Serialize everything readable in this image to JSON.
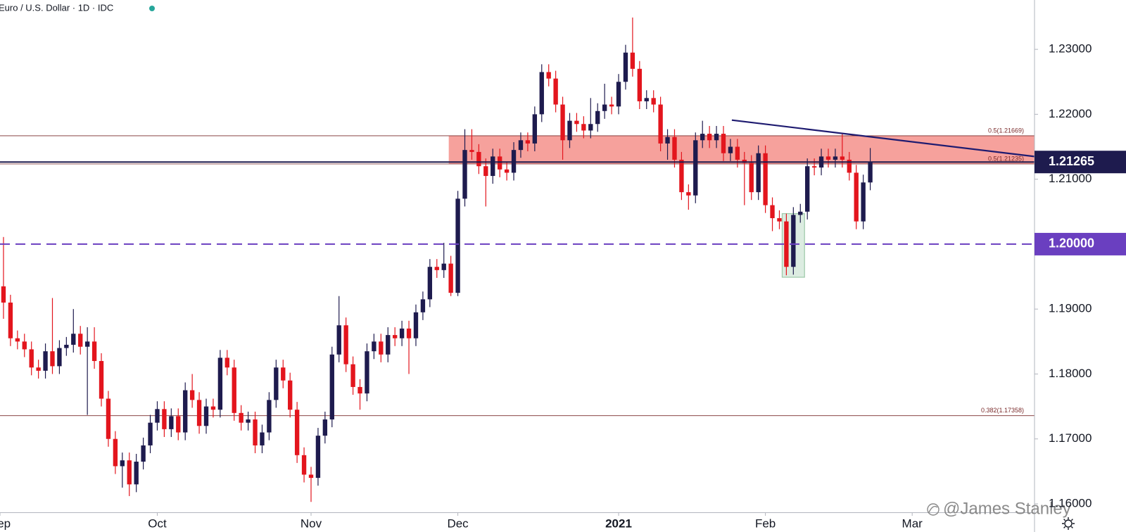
{
  "chart_data": {
    "type": "candlestick",
    "title": "Euro / U.S. Dollar · 1D · IDC",
    "watermark": "@James Stanley",
    "up_color": "#1e1b4e",
    "down_color": "#e3151d",
    "xlim": [
      -0.5,
      147.5
    ],
    "ylim": [
      1.1587,
      1.2376
    ],
    "xticks": [
      {
        "value": -0.5,
        "label": "Sep"
      },
      {
        "value": 22,
        "label": "Oct"
      },
      {
        "value": 44,
        "label": "Nov"
      },
      {
        "value": 65,
        "label": "Dec"
      },
      {
        "value": 88,
        "label": "2021"
      },
      {
        "value": 109,
        "label": "Feb"
      },
      {
        "value": 130,
        "label": "Mar"
      }
    ],
    "yticks": [
      {
        "value": 1.23,
        "label": "1.23000"
      },
      {
        "value": 1.22,
        "label": "1.22000"
      },
      {
        "value": 1.21,
        "label": "1.21000"
      },
      {
        "value": 1.2,
        "label": "1.20000"
      },
      {
        "value": 1.19,
        "label": "1.19000"
      },
      {
        "value": 1.18,
        "label": "1.18000"
      },
      {
        "value": 1.17,
        "label": "1.17000"
      },
      {
        "value": 1.16,
        "label": "1.16000"
      }
    ],
    "last_price": {
      "value": 1.21265,
      "label": "1.21265",
      "color": "#1e1b4e"
    },
    "level": {
      "value": 1.2,
      "label": "1.20000",
      "color": "#6a3fc0"
    },
    "fib_levels": [
      {
        "value": 1.21669,
        "label": "0.5(1.21669)"
      },
      {
        "value": 1.21235,
        "label": "0.5(1.21235)"
      },
      {
        "value": 1.17358,
        "label": "0.382(1.17358)"
      }
    ],
    "zone": {
      "x": 63.7,
      "y": [
        1.21235,
        1.21669
      ],
      "color": "#f4918b"
    },
    "trendline": {
      "x": [
        104.2,
        147.5
      ],
      "y": [
        1.2191,
        1.2135
      ],
      "color": "#1e1b70"
    },
    "highlight_box": {
      "x": [
        111.4,
        114.6
      ],
      "y": [
        1.1949,
        1.2047
      ],
      "color": "#9cc9a8"
    },
    "open": [
      1.1935,
      1.191,
      1.1855,
      1.185,
      1.1838,
      1.181,
      1.1805,
      1.1835,
      1.1812,
      1.184,
      1.1845,
      1.1862,
      1.1842,
      1.185,
      1.182,
      1.1762,
      1.17,
      1.1658,
      1.1667,
      1.163,
      1.1665,
      1.169,
      1.1725,
      1.1746,
      1.1715,
      1.1735,
      1.171,
      1.1775,
      1.176,
      1.172,
      1.175,
      1.1745,
      1.1825,
      1.181,
      1.174,
      1.1725,
      1.173,
      1.169,
      1.171,
      1.176,
      1.181,
      1.179,
      1.1745,
      1.1675,
      1.1645,
      1.164,
      1.1705,
      1.173,
      1.183,
      1.1875,
      1.1815,
      1.178,
      1.177,
      1.1835,
      1.185,
      1.183,
      1.186,
      1.1855,
      1.187,
      1.1855,
      1.1895,
      1.1915,
      1.1965,
      1.196,
      1.197,
      1.1925,
      1.207,
      1.2145,
      1.2142,
      1.212,
      1.2105,
      1.2135,
      1.2115,
      1.211,
      1.2145,
      1.216,
      1.2155,
      1.22,
      1.2265,
      1.2255,
      1.2215,
      1.216,
      1.219,
      1.2185,
      1.2175,
      1.2185,
      1.2205,
      1.2215,
      1.2212,
      1.225,
      1.2295,
      1.227,
      1.222,
      1.2225,
      1.2215,
      1.2155,
      1.2165,
      1.213,
      1.208,
      1.2075,
      1.216,
      1.217,
      1.216,
      1.217,
      1.214,
      1.215,
      1.213,
      1.2125,
      1.208,
      1.214,
      1.206,
      1.204,
      1.2035,
      1.1965,
      1.2045,
      1.205,
      1.212,
      1.2118,
      1.2135,
      1.213,
      1.2135,
      1.213,
      1.211,
      1.2035,
      1.2095
    ],
    "high": [
      1.2011,
      1.1922,
      1.1867,
      1.1862,
      1.185,
      1.1822,
      1.1847,
      1.1917,
      1.1852,
      1.1857,
      1.19,
      1.1874,
      1.1872,
      1.1872,
      1.1832,
      1.1774,
      1.1712,
      1.1679,
      1.1679,
      1.1677,
      1.1702,
      1.1737,
      1.1758,
      1.1758,
      1.1747,
      1.1747,
      1.1787,
      1.18,
      1.1772,
      1.1762,
      1.1762,
      1.1837,
      1.1837,
      1.1822,
      1.1752,
      1.1742,
      1.1742,
      1.1722,
      1.1772,
      1.1822,
      1.1822,
      1.1802,
      1.1757,
      1.1687,
      1.1657,
      1.1717,
      1.1742,
      1.1842,
      1.192,
      1.1887,
      1.1827,
      1.1792,
      1.1847,
      1.1862,
      1.1862,
      1.1872,
      1.1872,
      1.1882,
      1.1882,
      1.1907,
      1.1927,
      1.1977,
      1.1977,
      1.2002,
      1.1982,
      1.2082,
      1.2177,
      1.2177,
      1.2154,
      1.2132,
      1.2147,
      1.2147,
      1.2127,
      1.2157,
      1.2172,
      1.2172,
      1.2212,
      1.2277,
      1.2277,
      1.2267,
      1.2227,
      1.2202,
      1.2202,
      1.2197,
      1.2225,
      1.2217,
      1.2247,
      1.2227,
      1.2262,
      1.2307,
      1.2349,
      1.2282,
      1.2237,
      1.2237,
      1.2227,
      1.2177,
      1.2177,
      1.2142,
      1.2092,
      1.2172,
      1.219,
      1.2182,
      1.2182,
      1.2182,
      1.2162,
      1.2162,
      1.2142,
      1.2137,
      1.2152,
      1.2152,
      1.2072,
      1.2052,
      1.2047,
      1.2057,
      1.2062,
      1.2132,
      1.2132,
      1.2147,
      1.2147,
      1.2147,
      1.217,
      1.2142,
      1.2122,
      1.2107,
      1.2148
    ],
    "low": [
      1.1885,
      1.1843,
      1.1838,
      1.1826,
      1.1798,
      1.1793,
      1.1793,
      1.18,
      1.18,
      1.1828,
      1.1833,
      1.183,
      1.1737,
      1.1808,
      1.175,
      1.1688,
      1.1646,
      1.1625,
      1.1612,
      1.1618,
      1.1653,
      1.1678,
      1.1713,
      1.1703,
      1.1703,
      1.1698,
      1.1698,
      1.1748,
      1.1708,
      1.1708,
      1.1733,
      1.1733,
      1.1798,
      1.1728,
      1.1713,
      1.1713,
      1.1678,
      1.1678,
      1.1698,
      1.1748,
      1.1778,
      1.1733,
      1.1663,
      1.1633,
      1.1603,
      1.1628,
      1.1693,
      1.1718,
      1.1818,
      1.1803,
      1.1768,
      1.1745,
      1.1758,
      1.1823,
      1.1818,
      1.1818,
      1.1843,
      1.1843,
      1.18,
      1.1843,
      1.1883,
      1.1903,
      1.1948,
      1.1948,
      1.192,
      1.192,
      1.2058,
      1.213,
      1.2108,
      1.2058,
      1.2093,
      1.2103,
      1.2098,
      1.2098,
      1.2133,
      1.2143,
      1.2143,
      1.2188,
      1.2243,
      1.2203,
      1.213,
      1.2148,
      1.2173,
      1.2163,
      1.2163,
      1.2173,
      1.2193,
      1.22,
      1.22,
      1.2238,
      1.2258,
      1.2208,
      1.2208,
      1.2203,
      1.2143,
      1.213,
      1.2118,
      1.2068,
      1.2053,
      1.2063,
      1.2148,
      1.2148,
      1.2148,
      1.2128,
      1.2128,
      1.2118,
      1.206,
      1.2068,
      1.2068,
      1.2048,
      1.202,
      1.2023,
      1.1952,
      1.1953,
      1.2033,
      1.2038,
      1.2106,
      1.2106,
      1.2118,
      1.2118,
      1.2118,
      1.2098,
      1.2023,
      1.2023,
      1.2083
    ],
    "close": [
      1.191,
      1.1855,
      1.185,
      1.1838,
      1.181,
      1.1805,
      1.1835,
      1.1812,
      1.184,
      1.1845,
      1.1862,
      1.1842,
      1.185,
      1.182,
      1.1762,
      1.17,
      1.1658,
      1.1667,
      1.163,
      1.1665,
      1.169,
      1.1725,
      1.1746,
      1.1715,
      1.1735,
      1.171,
      1.1775,
      1.176,
      1.172,
      1.175,
      1.1745,
      1.1825,
      1.181,
      1.174,
      1.1725,
      1.173,
      1.169,
      1.171,
      1.176,
      1.181,
      1.179,
      1.1745,
      1.1675,
      1.1645,
      1.164,
      1.1705,
      1.173,
      1.183,
      1.1875,
      1.1815,
      1.178,
      1.177,
      1.1835,
      1.185,
      1.183,
      1.186,
      1.1855,
      1.187,
      1.1855,
      1.1895,
      1.1915,
      1.1965,
      1.196,
      1.197,
      1.1925,
      1.207,
      1.2145,
      1.2142,
      1.212,
      1.2105,
      1.2135,
      1.2115,
      1.211,
      1.2145,
      1.216,
      1.2155,
      1.22,
      1.2265,
      1.2255,
      1.2215,
      1.216,
      1.219,
      1.2185,
      1.2175,
      1.2185,
      1.2205,
      1.2215,
      1.2212,
      1.225,
      1.2295,
      1.227,
      1.222,
      1.2225,
      1.2215,
      1.2155,
      1.2165,
      1.213,
      1.208,
      1.2075,
      1.216,
      1.217,
      1.216,
      1.217,
      1.214,
      1.215,
      1.213,
      1.2125,
      1.208,
      1.214,
      1.206,
      1.204,
      1.2035,
      1.1965,
      1.2045,
      1.205,
      1.212,
      1.2118,
      1.2135,
      1.213,
      1.2135,
      1.213,
      1.211,
      1.2035,
      1.2095,
      1.2126
    ]
  }
}
